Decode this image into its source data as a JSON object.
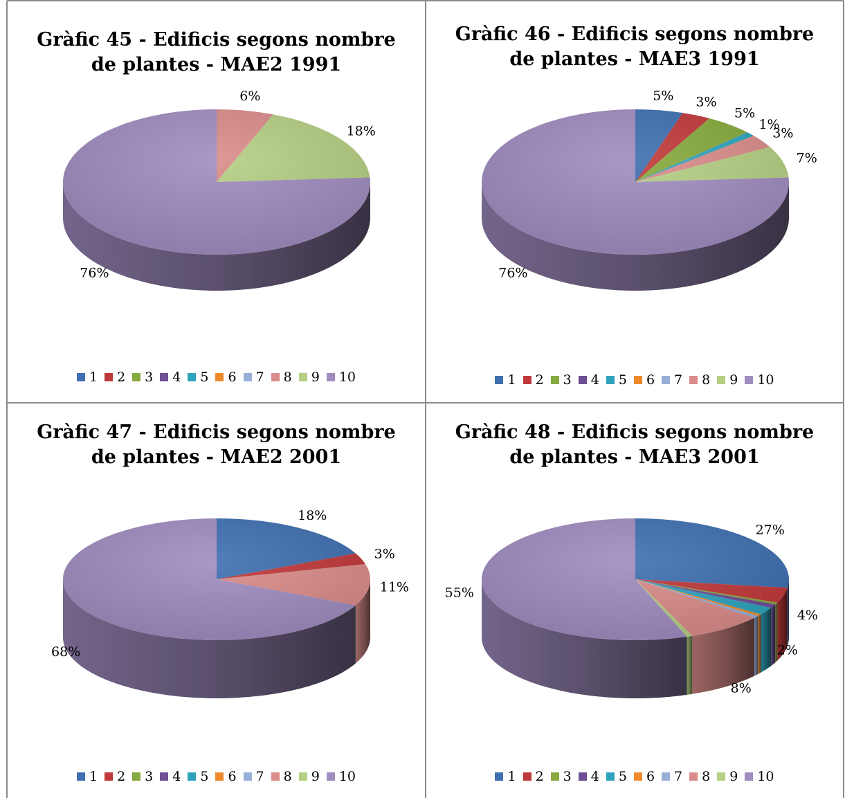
{
  "colors": {
    "1": "#3f6fb0",
    "2": "#c0393a",
    "3": "#86aa3d",
    "4": "#6d4f94",
    "5": "#2fa3bd",
    "6": "#ef8a2c",
    "7": "#96b0d8",
    "8": "#d98c8a",
    "9": "#b5cf84",
    "10": "#a08cbf"
  },
  "chart_data": [
    {
      "type": "pie",
      "title_line1": "Gràfic 45 - Edificis segons nombre",
      "title_line2": "de plantes - MAE2 1991",
      "legend": [
        "1",
        "2",
        "3",
        "4",
        "5",
        "6",
        "7",
        "8",
        "9",
        "10"
      ],
      "categories": [
        "1",
        "2",
        "3",
        "4",
        "5",
        "6",
        "7",
        "8",
        "9",
        "10"
      ],
      "values": [
        0,
        0,
        0,
        0,
        0,
        0,
        0,
        6,
        18,
        76
      ],
      "labels": [
        {
          "category": "8",
          "text": "6%"
        },
        {
          "category": "9",
          "text": "18%"
        },
        {
          "category": "10",
          "text": "76%"
        }
      ],
      "legend_position": "bottom"
    },
    {
      "type": "pie",
      "title_line1": "Gràfic 46 - Edificis segons nombre",
      "title_line2": "de plantes - MAE3 1991",
      "legend": [
        "1",
        "2",
        "3",
        "4",
        "5",
        "6",
        "7",
        "8",
        "9",
        "10"
      ],
      "categories": [
        "1",
        "2",
        "3",
        "4",
        "5",
        "6",
        "7",
        "8",
        "9",
        "10"
      ],
      "values": [
        5,
        3,
        5,
        0,
        1,
        0,
        0,
        3,
        7,
        76
      ],
      "labels": [
        {
          "category": "1",
          "text": "5%"
        },
        {
          "category": "2",
          "text": "3%"
        },
        {
          "category": "3",
          "text": "5%"
        },
        {
          "category": "5",
          "text": "1%"
        },
        {
          "category": "8",
          "text": "3%"
        },
        {
          "category": "9",
          "text": "7%"
        },
        {
          "category": "10",
          "text": "76%"
        }
      ],
      "legend_position": "bottom"
    },
    {
      "type": "pie",
      "title_line1": "Gràfic 47 - Edificis segons nombre",
      "title_line2": "de plantes - MAE2 2001",
      "legend": [
        "1",
        "2",
        "3",
        "4",
        "5",
        "6",
        "7",
        "8",
        "9",
        "10"
      ],
      "categories": [
        "1",
        "2",
        "3",
        "4",
        "5",
        "6",
        "7",
        "8",
        "9",
        "10"
      ],
      "values": [
        18,
        3,
        0,
        0,
        0,
        0,
        0,
        11,
        0,
        68
      ],
      "labels": [
        {
          "category": "1",
          "text": "18%"
        },
        {
          "category": "2",
          "text": "3%"
        },
        {
          "category": "8",
          "text": "11%"
        },
        {
          "category": "10",
          "text": "68%"
        }
      ],
      "legend_position": "bottom"
    },
    {
      "type": "pie",
      "title_line1": "Gràfic 48 - Edificis segons nombre",
      "title_line2": "de plantes - MAE3 2001",
      "legend": [
        "1",
        "2",
        "3",
        "4",
        "5",
        "6",
        "7",
        "8",
        "9",
        "10"
      ],
      "categories": [
        "1",
        "2",
        "3",
        "4",
        "5",
        "6",
        "7",
        "8",
        "9",
        "10"
      ],
      "values": [
        27,
        4,
        0.5,
        1,
        2,
        0.5,
        0.6,
        8,
        0.6,
        55
      ],
      "labels": [
        {
          "category": "1",
          "text": "27%"
        },
        {
          "category": "2",
          "text": "4%"
        },
        {
          "category": "5",
          "text": "2%"
        },
        {
          "category": "8",
          "text": "8%"
        },
        {
          "category": "10",
          "text": "55%"
        }
      ],
      "legend_position": "bottom"
    }
  ]
}
